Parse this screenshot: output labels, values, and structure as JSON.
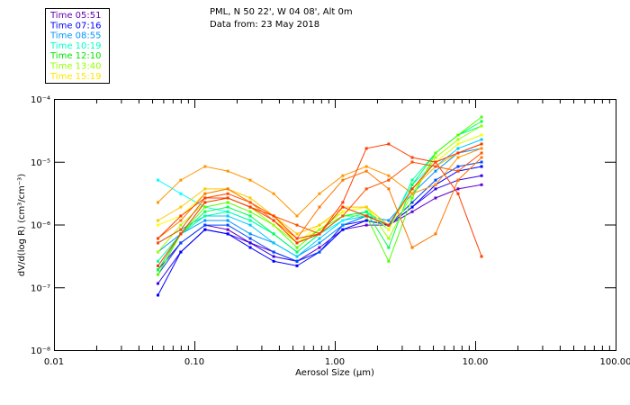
{
  "header": {
    "line1": "PML, N 50 22', W 04 08', Alt 0m",
    "line2": "Data from: 23 May 2018"
  },
  "chart_data": {
    "type": "line",
    "title": "PML, N 50 22', W 04 08', Alt 0m",
    "subtitle": "Data from: 23 May 2018",
    "xlabel": "Aerosol Size (μm)",
    "ylabel": "dV/d(log R) (cm³/cm⁻³)",
    "xscale": "log",
    "yscale": "log",
    "xlim": [
      0.01,
      100
    ],
    "ylim": [
      1e-08,
      0.0001
    ],
    "xticks": [
      {
        "value": 0.01,
        "label": "0.01"
      },
      {
        "value": 0.1,
        "label": "0.10"
      },
      {
        "value": 1,
        "label": "1.00"
      },
      {
        "value": 10,
        "label": "10.00"
      },
      {
        "value": 100,
        "label": "100.00"
      }
    ],
    "yticks": [
      {
        "value": 0.0001,
        "label": "10⁻⁴"
      },
      {
        "value": 1e-05,
        "label": "10⁻⁵"
      },
      {
        "value": 1e-06,
        "label": "10⁻⁶"
      },
      {
        "value": 1e-07,
        "label": "10⁻⁷"
      },
      {
        "value": 1e-08,
        "label": "10⁻⁸"
      }
    ],
    "grid": false,
    "legend_placement": "top-left",
    "legend": [
      {
        "label": "Time 05:51",
        "color": "#6400b4"
      },
      {
        "label": "Time 07:16",
        "color": "#0000ff"
      },
      {
        "label": "Time 08:55",
        "color": "#0096ff"
      },
      {
        "label": "Time 10:19",
        "color": "#00ffc8"
      },
      {
        "label": "Time 12:10",
        "color": "#00e600"
      },
      {
        "label": "Time 13:40",
        "color": "#96ff00"
      },
      {
        "label": "Time 15:19",
        "color": "#ffe600"
      }
    ],
    "x": [
      0.055,
      0.08,
      0.119,
      0.173,
      0.25,
      0.367,
      0.538,
      0.778,
      1.14,
      1.68,
      2.42,
      3.56,
      5.22,
      7.55,
      11.1
    ],
    "series": [
      {
        "color": "#6400c8",
        "values": [
          1.9e-07,
          5.1e-07,
          9.8e-07,
          8.3e-07,
          5.1e-07,
          3.65e-07,
          2.6e-07,
          4.3e-07,
          8.3e-07,
          9.8e-07,
          9.8e-07,
          1.6e-06,
          2.65e-06,
          3.7e-06,
          4.3e-06
        ]
      },
      {
        "color": "#3200e6",
        "values": [
          1.15e-07,
          3.65e-07,
          8.3e-07,
          7.1e-07,
          5.1e-07,
          3.1e-07,
          2.6e-07,
          3.65e-07,
          9.8e-07,
          1.16e-06,
          9.8e-07,
          1.9e-06,
          3.7e-06,
          5.1e-06,
          6e-06
        ]
      },
      {
        "color": "#0000ff",
        "values": [
          7.5e-08,
          3.65e-07,
          8.3e-07,
          7.1e-07,
          4.3e-07,
          2.6e-07,
          2.2e-07,
          3.65e-07,
          8.3e-07,
          1.16e-06,
          9.8e-07,
          1.9e-06,
          4.3e-06,
          7.1e-06,
          8.4e-06
        ]
      },
      {
        "color": "#0046ff",
        "values": [
          1.6e-07,
          5.1e-07,
          9.8e-07,
          9.8e-07,
          6e-07,
          3.65e-07,
          2.6e-07,
          3.65e-07,
          9.8e-07,
          1.37e-06,
          9.8e-07,
          2.25e-06,
          5.1e-06,
          8.4e-06,
          9.9e-06
        ]
      },
      {
        "color": "#0096ff",
        "values": [
          3.65e-07,
          7.1e-07,
          1.16e-06,
          1.16e-06,
          7.1e-07,
          5.1e-07,
          3.1e-07,
          5.1e-07,
          9.8e-07,
          1.37e-06,
          1.16e-06,
          3.1e-06,
          7.1e-06,
          1.38e-05,
          1.63e-05
        ]
      },
      {
        "color": "#00c8ff",
        "values": [
          5.1e-07,
          8.3e-07,
          1.37e-06,
          1.37e-06,
          9.8e-07,
          5.1e-07,
          3.1e-07,
          6e-07,
          1.16e-06,
          1.37e-06,
          9.8e-07,
          3.7e-06,
          8.4e-06,
          1.63e-05,
          2.26e-05
        ]
      },
      {
        "color": "#00ffff",
        "values": [
          5.1e-06,
          3.1e-06,
          1.9e-06,
          1.6e-06,
          1.16e-06,
          7.1e-07,
          3.65e-07,
          7.1e-07,
          1.16e-06,
          1.6e-06,
          9.8e-07,
          4.3e-06,
          9.9e-06,
          1.92e-05,
          2.67e-05
        ]
      },
      {
        "color": "#00ffa0",
        "values": [
          2.6e-07,
          7.1e-07,
          1.37e-06,
          1.6e-06,
          1.16e-06,
          7.1e-07,
          3.65e-07,
          7.1e-07,
          1.37e-06,
          1.6e-06,
          8.3e-07,
          5.1e-06,
          1.38e-05,
          2.67e-05,
          3.71e-05
        ]
      },
      {
        "color": "#00ff50",
        "values": [
          1.9e-07,
          7.1e-07,
          1.6e-06,
          1.9e-06,
          1.37e-06,
          7.1e-07,
          3.65e-07,
          7.1e-07,
          1.37e-06,
          1.6e-06,
          4.3e-07,
          4.3e-06,
          1.38e-05,
          2.67e-05,
          4.38e-05
        ]
      },
      {
        "color": "#50ff00",
        "values": [
          1.6e-07,
          7.1e-07,
          1.9e-06,
          2.25e-06,
          1.6e-06,
          9.8e-07,
          4.3e-07,
          8.3e-07,
          1.37e-06,
          1.37e-06,
          2.6e-07,
          2.65e-06,
          1.38e-05,
          2.67e-05,
          5.16e-05
        ]
      },
      {
        "color": "#a0ff00",
        "values": [
          3.65e-07,
          9.8e-07,
          2.25e-06,
          2.65e-06,
          1.9e-06,
          9.8e-07,
          5.1e-07,
          8.3e-07,
          1.6e-06,
          1.9e-06,
          6e-07,
          3.1e-06,
          1.17e-05,
          2.26e-05,
          3.71e-05
        ]
      },
      {
        "color": "#ffff00",
        "values": [
          9.8e-07,
          1.37e-06,
          3.1e-06,
          3.7e-06,
          2.25e-06,
          1.37e-06,
          5.1e-07,
          9.8e-07,
          1.6e-06,
          1.9e-06,
          8.3e-07,
          3.7e-06,
          9.9e-06,
          1.92e-05,
          2.67e-05
        ]
      },
      {
        "color": "#ffc800",
        "values": [
          1.16e-06,
          1.9e-06,
          3.7e-06,
          3.7e-06,
          2.65e-06,
          1.37e-06,
          7.1e-07,
          9.8e-07,
          1.9e-06,
          1.9e-06,
          9.8e-07,
          3.7e-06,
          8.4e-06,
          1.38e-05,
          1.92e-05
        ]
      },
      {
        "color": "#ff9600",
        "values": [
          2.25e-06,
          5.1e-06,
          8.4e-06,
          7.1e-06,
          5.1e-06,
          3.1e-06,
          1.37e-06,
          3.1e-06,
          6e-06,
          8.4e-06,
          6e-06,
          3.1e-06,
          4.3e-06,
          1.17e-05,
          1.63e-05
        ]
      },
      {
        "color": "#ff7800",
        "values": [
          6e-07,
          1.16e-06,
          3.1e-06,
          3.7e-06,
          2.25e-06,
          1.16e-06,
          6e-07,
          1.9e-06,
          5.1e-06,
          7.1e-06,
          3.7e-06,
          4.3e-07,
          7.1e-07,
          5.1e-06,
          1.17e-05
        ]
      },
      {
        "color": "#ff5000",
        "values": [
          5.1e-07,
          8.3e-07,
          2.65e-06,
          3.1e-06,
          2.25e-06,
          1.37e-06,
          9.8e-07,
          7.1e-07,
          1.37e-06,
          3.7e-06,
          5.1e-06,
          9.9e-06,
          8.4e-06,
          7.1e-06,
          1.38e-05
        ]
      },
      {
        "color": "#ff3200",
        "values": [
          2.2e-07,
          7.1e-07,
          2.25e-06,
          2.65e-06,
          1.9e-06,
          1.16e-06,
          5.1e-07,
          7.1e-07,
          1.9e-06,
          1.37e-06,
          9.8e-07,
          3.7e-06,
          9.9e-06,
          1.38e-05,
          1.92e-05
        ]
      },
      {
        "color": "#ff3c00",
        "values": [
          6e-07,
          1.37e-06,
          2.65e-06,
          2.65e-06,
          1.9e-06,
          1.37e-06,
          6e-07,
          7.1e-07,
          2.25e-06,
          1.63e-05,
          1.92e-05,
          1.17e-05,
          9.9e-06,
          3.1e-06,
          3.1e-07
        ]
      }
    ]
  }
}
